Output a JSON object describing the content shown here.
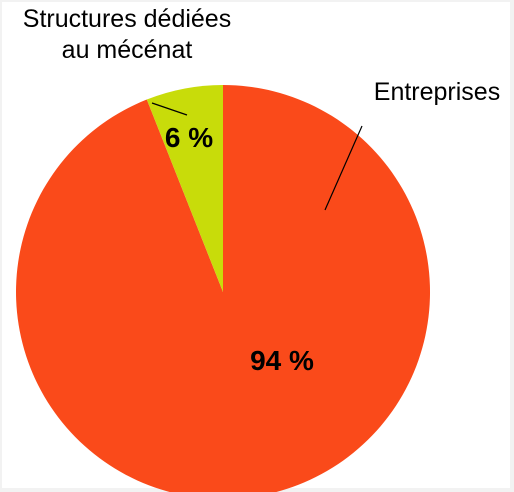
{
  "chart_data": {
    "type": "pie",
    "categories": [
      "Entreprises",
      "Structures dédiées au mécénat"
    ],
    "values": [
      94,
      6
    ],
    "value_labels": [
      "94 %",
      "6 %"
    ],
    "label_lines": [
      [
        "Entreprises"
      ],
      [
        "Structures dédiées",
        "au mécénat"
      ]
    ],
    "colors": [
      "#fa4a1a",
      "#c8dc0a"
    ],
    "title": "",
    "legend": "none"
  }
}
